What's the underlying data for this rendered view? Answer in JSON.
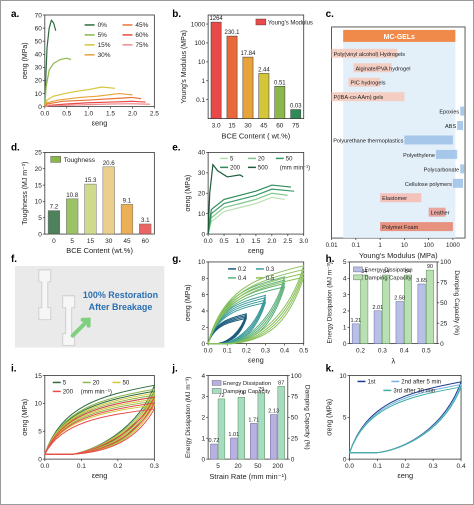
{
  "panels": {
    "a": {
      "letter": "a.",
      "ylabel": "σeng (MPa)",
      "xlabel": "εeng",
      "xticks": [
        "0.0",
        "0.5",
        "1.0",
        "1.5",
        "2.0",
        "2.5"
      ],
      "yticks": [
        "0",
        "10",
        "20",
        "30",
        "40",
        "50",
        "60",
        "70"
      ],
      "legend": [
        "0%",
        "5%",
        "15%",
        "30%",
        "45%",
        "60%",
        "75%"
      ],
      "colors": [
        "#2e6b3f",
        "#8ab84a",
        "#d4c53a",
        "#e8a23a",
        "#e87438",
        "#e84a4a",
        "#f08a8a"
      ],
      "xlim": [
        0,
        2.5
      ],
      "ylim": [
        0,
        70
      ],
      "series": [
        {
          "name": "0%",
          "x": [
            0,
            0.02,
            0.05,
            0.1,
            0.15,
            0.2,
            0.25
          ],
          "y": [
            0,
            20,
            45,
            60,
            66,
            64,
            58
          ]
        },
        {
          "name": "5%",
          "x": [
            0,
            0.03,
            0.1,
            0.2,
            0.35,
            0.5,
            0.6
          ],
          "y": [
            0,
            15,
            28,
            33,
            36,
            37,
            36
          ]
        },
        {
          "name": "15%",
          "x": [
            0,
            0.05,
            0.2,
            0.6,
            1.0,
            1.3,
            1.6
          ],
          "y": [
            0,
            5,
            8,
            11,
            13,
            15,
            14
          ]
        },
        {
          "name": "30%",
          "x": [
            0,
            0.05,
            0.3,
            0.8,
            1.2,
            1.7,
            2.0
          ],
          "y": [
            0,
            3,
            5,
            7,
            8,
            10,
            9
          ]
        },
        {
          "name": "45%",
          "x": [
            0,
            0.05,
            0.4,
            1.0,
            1.5,
            2.0,
            2.2
          ],
          "y": [
            0,
            2,
            4,
            5,
            6,
            7,
            6
          ]
        },
        {
          "name": "60%",
          "x": [
            0,
            0.1,
            0.5,
            1.0,
            1.5,
            2.0,
            2.3
          ],
          "y": [
            0,
            1,
            2,
            3,
            3.5,
            4,
            3.5
          ]
        },
        {
          "name": "75%",
          "x": [
            0,
            0.1,
            0.5,
            1.0,
            1.5,
            2.0,
            2.4
          ],
          "y": [
            0,
            0.5,
            1,
            1.5,
            2,
            2.2,
            1.8
          ]
        }
      ]
    },
    "b": {
      "letter": "b.",
      "ylabel": "Young's Modulus (MPa)",
      "xlabel": "BCE Content ( wt.%)",
      "legend": "Young's Modulus",
      "categories": [
        "3.0",
        "15",
        "30",
        "45",
        "60",
        "75"
      ],
      "values": [
        1264,
        230.1,
        17.84,
        2.44,
        0.51,
        0.03
      ],
      "labels": [
        "1264",
        "230.1",
        "17.84",
        "2.44",
        "0.51",
        "0.03"
      ],
      "colors": [
        "#e84a4a",
        "#e86a3a",
        "#e8a23a",
        "#d4c53a",
        "#8ab84a",
        "#2e8b57"
      ],
      "yticks": [
        "0.1",
        "1",
        "10",
        "100",
        "1000"
      ],
      "ylim": [
        0.01,
        3000
      ],
      "scale": "log"
    },
    "c": {
      "letter": "c.",
      "xlabel": "Young's Modulus (MPa)",
      "xticks": [
        "0.01",
        "0.1",
        "1",
        "10",
        "100",
        "1000"
      ],
      "header": "MC-GELs",
      "bars": [
        {
          "label": "Poly(vinyl alcohol) Hydrogels",
          "range": [
            0.01,
            5
          ]
        },
        {
          "label": "Alginate/PVA hydrogel",
          "range": [
            0.08,
            3
          ]
        },
        {
          "label": "PIC hydrogels",
          "range": [
            0.05,
            1
          ]
        },
        {
          "label": "P(IBA-co-AAm) gels",
          "range": [
            0.01,
            10
          ]
        },
        {
          "label": "Epoxies",
          "range": [
            2000,
            4000
          ]
        },
        {
          "label": "ABS",
          "range": [
            1500,
            3000
          ]
        },
        {
          "label": "Polyurethane thermoplastics",
          "range": [
            10,
            1000
          ]
        },
        {
          "label": "Polyethylene",
          "range": [
            200,
            1500
          ]
        },
        {
          "label": "Polycarbonate",
          "range": [
            2000,
            2600
          ]
        },
        {
          "label": "Cellulose polymers",
          "range": [
            1000,
            3000
          ]
        },
        {
          "label": "Elastomer",
          "range": [
            1,
            50
          ]
        },
        {
          "label": "Leather",
          "range": [
            100,
            500
          ]
        },
        {
          "label": "Polymer Foam",
          "range": [
            1,
            1000
          ]
        }
      ],
      "mcgel_range": [
        0.03,
        1264
      ]
    },
    "d": {
      "letter": "d.",
      "ylabel": "Toughness (MJ m⁻³)",
      "xlabel": "BCE Content (wt.%)",
      "legend": "Toughness",
      "categories": [
        "0",
        "5",
        "15",
        "30",
        "45",
        "60"
      ],
      "values": [
        7.2,
        10.8,
        15.3,
        20.6,
        9.1,
        3.1
      ],
      "labels": [
        "7.2",
        "10.8",
        "15.3",
        "20.6",
        "9.1",
        "3.1"
      ],
      "colors": [
        "#2e6b3f",
        "#8ab84a",
        "#c8d47a",
        "#e8c87a",
        "#e8a23a",
        "#e84a4a"
      ],
      "yticks": [
        "0",
        "5",
        "10",
        "15",
        "20",
        "25"
      ],
      "ylim": [
        0,
        25
      ]
    },
    "e": {
      "letter": "e.",
      "ylabel": "σeng (MPa)",
      "xlabel": "εeng",
      "xticks": [
        "0.0",
        "0.5",
        "1.0",
        "1.5",
        "2.0",
        "2.5",
        "3.0"
      ],
      "yticks": [
        "0",
        "10",
        "20",
        "30",
        "40"
      ],
      "legend": [
        "5",
        "20",
        "50",
        "200",
        "500"
      ],
      "legend_unit": "(mm min⁻¹)",
      "colors": [
        "#b8e0b0",
        "#7ec88a",
        "#3a9a6a",
        "#2e8b57",
        "#1e5a3a"
      ],
      "xlim": [
        0,
        3
      ],
      "ylim": [
        0,
        40
      ],
      "series": [
        {
          "name": "5",
          "x": [
            0,
            0.1,
            0.5,
            1.0,
            1.5,
            2.0,
            2.4
          ],
          "y": [
            0,
            6,
            11,
            13,
            15,
            18,
            17
          ]
        },
        {
          "name": "20",
          "x": [
            0,
            0.1,
            0.5,
            1.0,
            1.5,
            2.0,
            2.5
          ],
          "y": [
            0,
            8,
            13,
            15,
            17,
            20,
            19
          ]
        },
        {
          "name": "50",
          "x": [
            0,
            0.1,
            0.5,
            1.0,
            1.5,
            2.0,
            2.7
          ],
          "y": [
            0,
            10,
            15,
            17,
            19,
            22,
            21
          ]
        },
        {
          "name": "200",
          "x": [
            0,
            0.1,
            0.5,
            1.0,
            1.5,
            2.0,
            2.6
          ],
          "y": [
            0,
            12,
            17,
            19,
            21,
            24,
            23
          ]
        },
        {
          "name": "500",
          "x": [
            0,
            0.05,
            0.15,
            0.3,
            0.6,
            1.0,
            1.1
          ],
          "y": [
            0,
            20,
            34,
            31,
            28,
            29,
            28
          ]
        }
      ]
    },
    "f": {
      "letter": "f.",
      "text": "100% Restoration After Breakage",
      "line1": "100% Restoration",
      "line2": "After Breakage"
    },
    "g": {
      "letter": "g.",
      "ylabel": "σeng (MPa)",
      "xlabel": "εeng",
      "xticks": [
        "0.0",
        "0.1",
        "0.2",
        "0.3",
        "0.4",
        "0.5"
      ],
      "yticks": [
        "0",
        "2",
        "4",
        "6",
        "8",
        "10"
      ],
      "legend": [
        "0.2",
        "0.3",
        "0.4",
        "0.5"
      ],
      "colors": [
        "#1a5a7a",
        "#3a9a9a",
        "#5ab07a",
        "#8ac05a"
      ],
      "xlim": [
        0,
        0.5
      ],
      "ylim": [
        0,
        11
      ]
    },
    "h": {
      "letter": "h.",
      "ylabel": "Energy Dissipation (MJ m⁻³)",
      "y2label": "Damping Capacity (%)",
      "xlabel": "λ",
      "legend": [
        "Energy Dissipation",
        "Damping Capacity"
      ],
      "categories": [
        "0.2",
        "0.3",
        "0.4",
        "0.5"
      ],
      "energy": [
        1.21,
        2.01,
        2.58,
        3.65
      ],
      "damping": [
        84,
        84,
        84,
        90
      ],
      "energy_labels": [
        "1.21",
        "2.01",
        "2.58",
        "3.65"
      ],
      "damping_labels": [
        "84",
        "84",
        "84",
        "90"
      ],
      "yticks": [
        "0",
        "1",
        "2",
        "3",
        "4",
        "5"
      ],
      "y2ticks": [
        "0",
        "25",
        "50",
        "75",
        "100"
      ],
      "ylim": [
        0,
        5
      ],
      "y2lim": [
        0,
        100
      ]
    },
    "i": {
      "letter": "i.",
      "ylabel": "σeng (MPa)",
      "xlabel": "εeng",
      "xticks": [
        "0.0",
        "0.1",
        "0.2",
        "0.3"
      ],
      "yticks": [
        "0",
        "5",
        "10",
        "15"
      ],
      "legend": [
        "5",
        "20",
        "50",
        "200"
      ],
      "legend_unit": "(mm min⁻¹)",
      "colors": [
        "#2e6b3f",
        "#8ab84a",
        "#d4c53a",
        "#e84a4a"
      ],
      "xlim": [
        0,
        0.3
      ],
      "ylim": [
        -1,
        16
      ]
    },
    "j": {
      "letter": "j.",
      "ylabel": "Energy Dissipation (MJ m⁻³)",
      "y2label": "Damping Capacity (%)",
      "xlabel": "Strain Rate (mm min⁻¹)",
      "legend": [
        "Energy Dissipation",
        "Damping Capacity"
      ],
      "categories": [
        "5",
        "20",
        "50",
        "200"
      ],
      "energy": [
        0.72,
        1.01,
        1.71,
        2.13
      ],
      "damping": [
        72,
        74,
        79,
        87
      ],
      "energy_labels": [
        "0.72",
        "1.01",
        "1.71",
        "2.13"
      ],
      "damping_labels": [
        "72",
        "74",
        "79",
        "87"
      ],
      "yticks": [
        "0",
        "1",
        "2",
        "3",
        "4"
      ],
      "y2ticks": [
        "0",
        "25",
        "50",
        "75",
        "100"
      ],
      "ylim": [
        0,
        4
      ],
      "y2lim": [
        0,
        100
      ]
    },
    "k": {
      "letter": "k.",
      "ylabel": "σeng (MPa)",
      "xlabel": "εeng",
      "xticks": [
        "0.0",
        "0.1",
        "0.2",
        "0.3",
        "0.4"
      ],
      "yticks": [
        "0",
        "5",
        "10"
      ],
      "legend": [
        "1st",
        "2nd after 5 min",
        "3rd after 30 min"
      ],
      "colors": [
        "#1a3a8a",
        "#7ab0e0",
        "#3ab0a0"
      ],
      "xlim": [
        0,
        0.4
      ],
      "ylim": [
        -1,
        12
      ]
    }
  }
}
